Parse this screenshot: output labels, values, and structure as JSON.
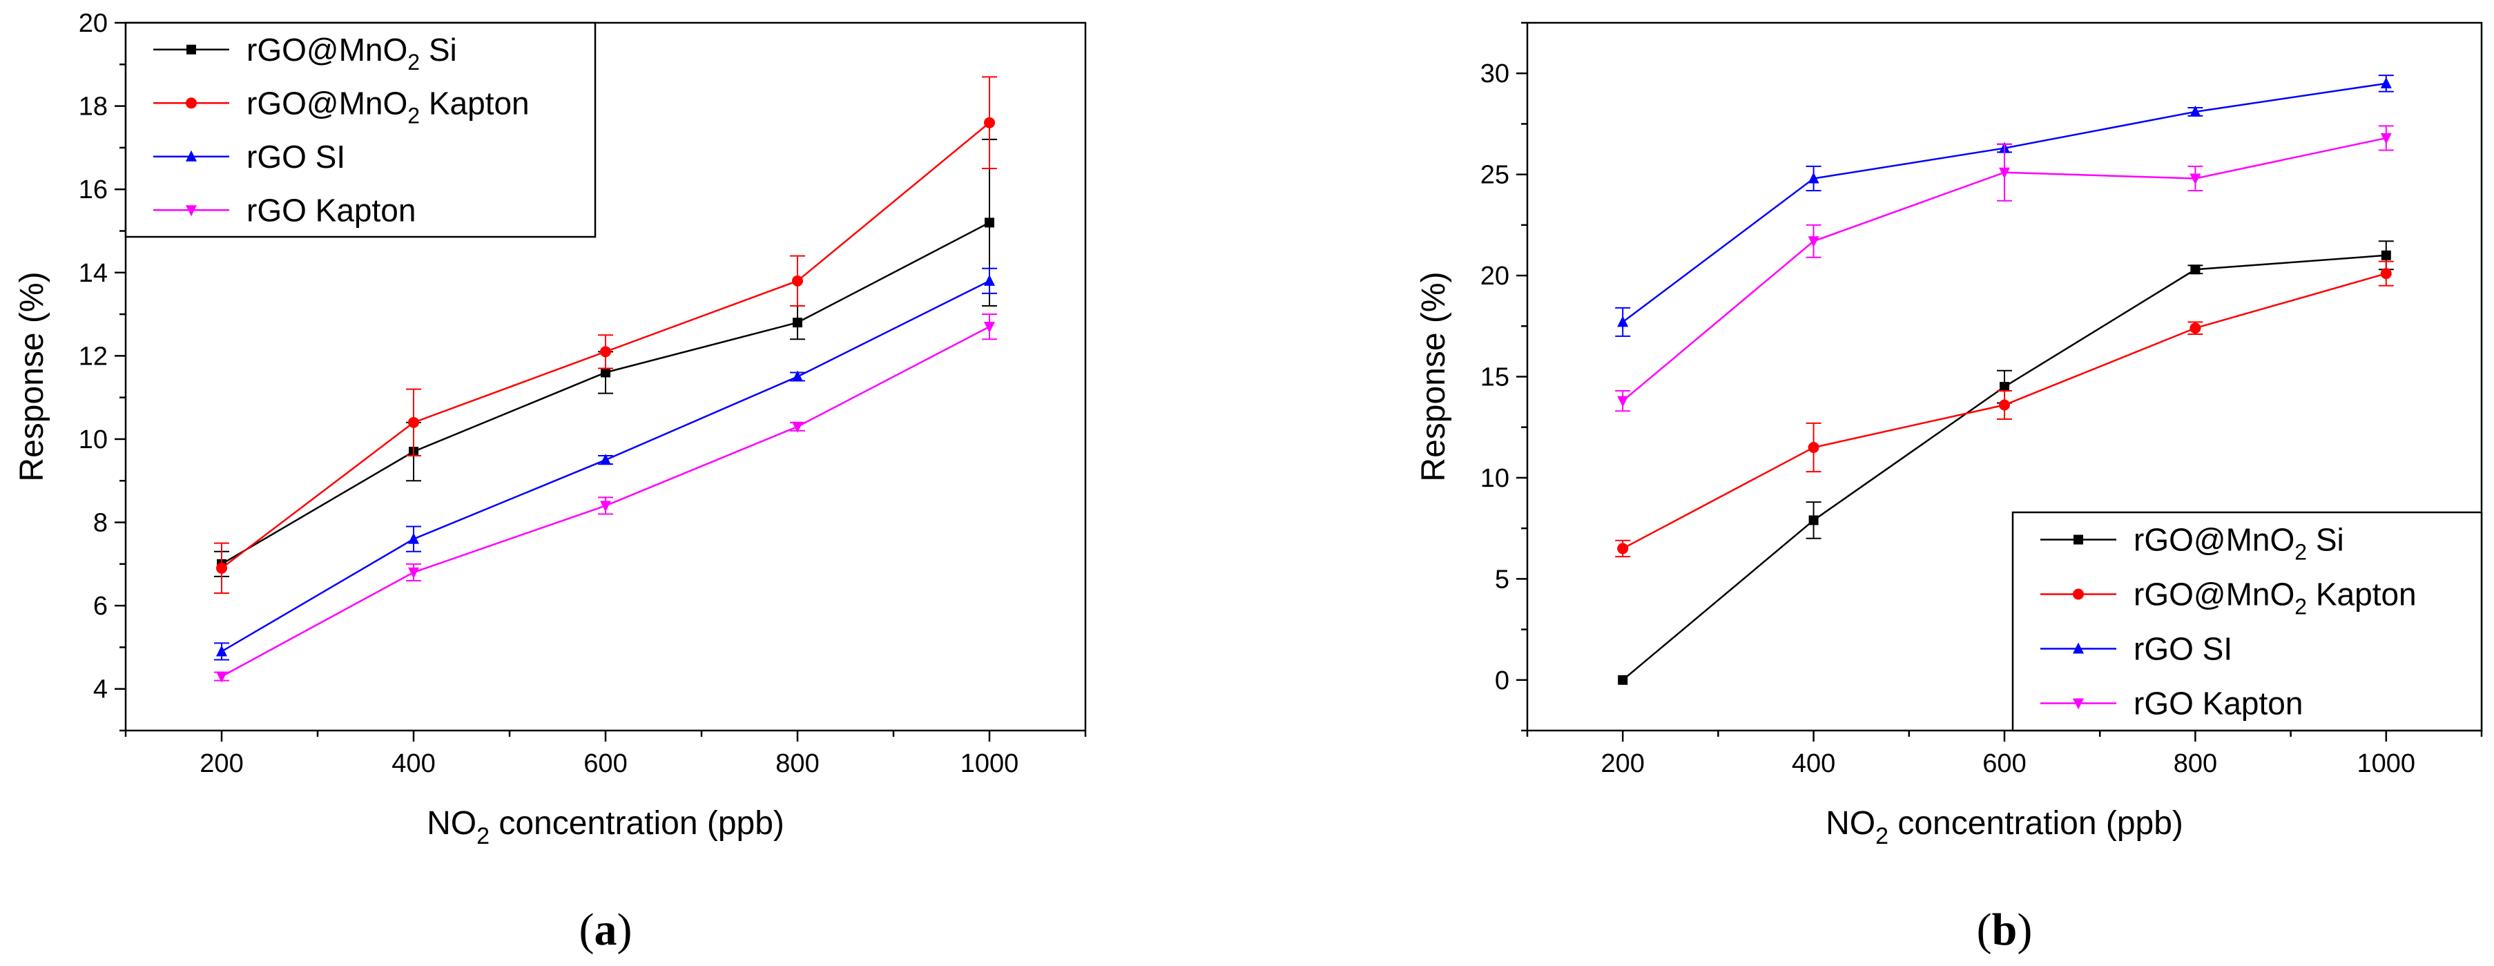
{
  "chart_data": [
    {
      "type": "line",
      "panel_label": "(a)",
      "panel_letter": "a",
      "x": [
        200,
        400,
        600,
        800,
        1000
      ],
      "xlabel": "NO2 concentration (ppb)",
      "xlabel_parts": {
        "pre": "NO",
        "sub": "2",
        "post": " concentration (ppb)"
      },
      "ylabel": "Response (%)",
      "xlim": [
        100,
        1100
      ],
      "ylim": [
        3,
        20
      ],
      "xticks": [
        200,
        400,
        600,
        800,
        1000
      ],
      "yticks": [
        4,
        6,
        8,
        10,
        12,
        14,
        16,
        18,
        20
      ],
      "legend_position": "top-left",
      "series": [
        {
          "name": "rGO@MnO2 Si",
          "name_parts": {
            "pre": "rGO@MnO",
            "sub": "2",
            "post": " Si"
          },
          "color": "#000000",
          "marker": "square",
          "values": [
            7.0,
            9.7,
            11.6,
            12.8,
            15.2
          ],
          "errors": [
            0.3,
            0.7,
            0.5,
            0.4,
            2.0
          ]
        },
        {
          "name": "rGO@MnO2 Kapton",
          "name_parts": {
            "pre": "rGO@MnO",
            "sub": "2",
            "post": " Kapton"
          },
          "color": "#ff0000",
          "marker": "circle",
          "values": [
            6.9,
            10.4,
            12.1,
            13.8,
            17.6
          ],
          "errors": [
            0.6,
            0.8,
            0.4,
            0.6,
            1.1
          ]
        },
        {
          "name": "rGO SI",
          "name_parts": {
            "pre": "rGO SI",
            "sub": "",
            "post": ""
          },
          "color": "#0000ff",
          "marker": "triangle-up",
          "values": [
            4.9,
            7.6,
            9.5,
            11.5,
            13.8
          ],
          "errors": [
            0.2,
            0.3,
            0.1,
            0.1,
            0.3
          ]
        },
        {
          "name": "rGO Kapton",
          "name_parts": {
            "pre": "rGO Kapton",
            "sub": "",
            "post": ""
          },
          "color": "#ff00ff",
          "marker": "triangle-down",
          "values": [
            4.3,
            6.8,
            8.4,
            10.3,
            12.7
          ],
          "errors": [
            0.1,
            0.2,
            0.2,
            0.1,
            0.3
          ]
        }
      ]
    },
    {
      "type": "line",
      "panel_label": "(b)",
      "panel_letter": "b",
      "x": [
        200,
        400,
        600,
        800,
        1000
      ],
      "xlabel": "NO2 concentration (ppb)",
      "xlabel_parts": {
        "pre": "NO",
        "sub": "2",
        "post": " concentration (ppb)"
      },
      "ylabel": "Response (%)",
      "xlim": [
        100,
        1100
      ],
      "ylim": [
        -2.5,
        32.5
      ],
      "xticks": [
        200,
        400,
        600,
        800,
        1000
      ],
      "yticks": [
        0,
        5,
        10,
        15,
        20,
        25,
        30
      ],
      "legend_position": "bottom-right",
      "series": [
        {
          "name": "rGO@MnO2 Si",
          "name_parts": {
            "pre": "rGO@MnO",
            "sub": "2",
            "post": " Si"
          },
          "color": "#000000",
          "marker": "square",
          "values": [
            0,
            7.9,
            14.5,
            20.3,
            21.0
          ],
          "errors": [
            0,
            0.9,
            0.8,
            0.2,
            0.7
          ]
        },
        {
          "name": "rGO@MnO2 Kapton",
          "name_parts": {
            "pre": "rGO@MnO",
            "sub": "2",
            "post": " Kapton"
          },
          "color": "#ff0000",
          "marker": "circle",
          "values": [
            6.5,
            11.5,
            13.6,
            17.4,
            20.1
          ],
          "errors": [
            0.4,
            1.2,
            0.7,
            0.3,
            0.6
          ]
        },
        {
          "name": "rGO SI",
          "name_parts": {
            "pre": "rGO SI",
            "sub": "",
            "post": ""
          },
          "color": "#0000ff",
          "marker": "triangle-up",
          "values": [
            17.7,
            24.8,
            26.3,
            28.1,
            29.5
          ],
          "errors": [
            0.7,
            0.6,
            0.2,
            0.2,
            0.4
          ]
        },
        {
          "name": "rGO Kapton",
          "name_parts": {
            "pre": "rGO Kapton",
            "sub": "",
            "post": ""
          },
          "color": "#ff00ff",
          "marker": "triangle-down",
          "values": [
            13.8,
            21.7,
            25.1,
            24.8,
            26.8
          ],
          "errors": [
            0.5,
            0.8,
            1.4,
            0.6,
            0.6
          ]
        }
      ]
    }
  ]
}
